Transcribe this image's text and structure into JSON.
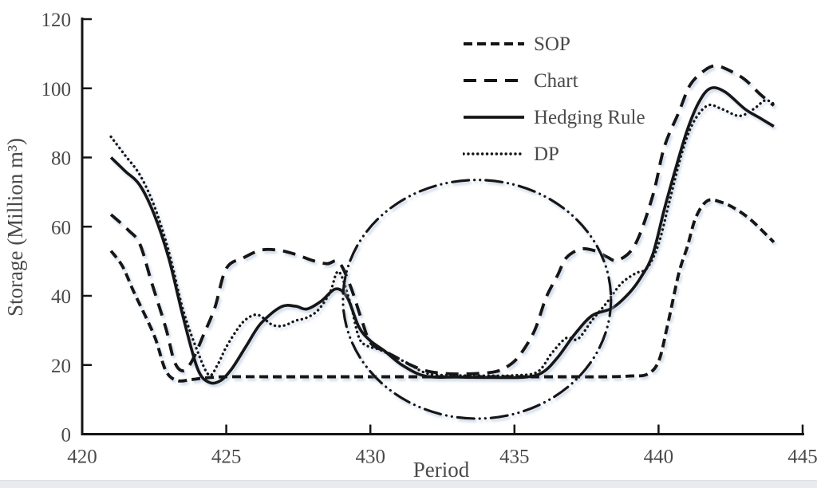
{
  "figure": {
    "background": "#ffffff",
    "text_color": "#4a4a4a",
    "line_color": "#141414",
    "shadow_color": "#a8bcd8",
    "bottom_strip_color": "#e9eaee"
  },
  "chart_data": {
    "type": "line",
    "title": "",
    "xlabel": "Period",
    "ylabel": "Storage (Million m³)",
    "xlim": [
      420,
      445
    ],
    "ylim": [
      0,
      120
    ],
    "x_ticks": [
      420,
      425,
      430,
      435,
      440,
      445
    ],
    "y_ticks": [
      0,
      20,
      40,
      60,
      80,
      100,
      120
    ],
    "grid": false,
    "legend_position": "top-center-inside",
    "series": [
      {
        "name": "SOP",
        "style": "dash-short",
        "points": [
          [
            421,
            53
          ],
          [
            421.4,
            48.5
          ],
          [
            421.8,
            41
          ],
          [
            422.5,
            28.5
          ],
          [
            422.9,
            18.4
          ],
          [
            423.3,
            15.5
          ],
          [
            423.8,
            15.8
          ],
          [
            424.3,
            16.3
          ],
          [
            425,
            16.6
          ],
          [
            426.5,
            16.6
          ],
          [
            428,
            16.6
          ],
          [
            429.5,
            16.6
          ],
          [
            431,
            16.6
          ],
          [
            432.5,
            16.6
          ],
          [
            434,
            16.6
          ],
          [
            435.5,
            16.6
          ],
          [
            437,
            16.6
          ],
          [
            438.2,
            16.6
          ],
          [
            439,
            16.8
          ],
          [
            439.6,
            17.3
          ],
          [
            440,
            21
          ],
          [
            440.3,
            31
          ],
          [
            440.7,
            46.4
          ],
          [
            441,
            54.2
          ],
          [
            441.3,
            62.8
          ],
          [
            441.7,
            67.5
          ],
          [
            442.2,
            67
          ],
          [
            442.7,
            65
          ],
          [
            443.2,
            62
          ],
          [
            443.7,
            58
          ],
          [
            444,
            55.5
          ]
        ]
      },
      {
        "name": "Chart",
        "style": "dash-long",
        "points": [
          [
            421,
            63.5
          ],
          [
            421.6,
            59
          ],
          [
            422,
            55
          ],
          [
            422.4,
            44.1
          ],
          [
            422.9,
            30.8
          ],
          [
            423.2,
            21
          ],
          [
            423.5,
            18.3
          ],
          [
            423.8,
            21
          ],
          [
            424.2,
            28.5
          ],
          [
            424.6,
            36.5
          ],
          [
            425,
            47.9
          ],
          [
            425.6,
            51
          ],
          [
            426.2,
            53.2
          ],
          [
            426.8,
            53.2
          ],
          [
            427.4,
            52
          ],
          [
            428,
            50.2
          ],
          [
            428.5,
            49.3
          ],
          [
            428.9,
            49.8
          ],
          [
            429.3,
            43
          ],
          [
            429.7,
            33
          ],
          [
            430,
            26.5
          ],
          [
            430.5,
            24
          ],
          [
            430.9,
            22.2
          ],
          [
            431.4,
            20
          ],
          [
            431.9,
            18.4
          ],
          [
            432.5,
            17.6
          ],
          [
            433.3,
            17.4
          ],
          [
            434.3,
            18
          ],
          [
            434.8,
            19.8
          ],
          [
            435.2,
            23
          ],
          [
            435.7,
            30
          ],
          [
            436.1,
            39.5
          ],
          [
            436.5,
            46
          ],
          [
            436.8,
            51
          ],
          [
            437.3,
            53.5
          ],
          [
            437.8,
            53
          ],
          [
            438.2,
            51.3
          ],
          [
            438.6,
            50.3
          ],
          [
            439.2,
            55
          ],
          [
            439.8,
            69
          ],
          [
            440.2,
            83
          ],
          [
            440.7,
            93
          ],
          [
            441.1,
            101
          ],
          [
            441.6,
            105.2
          ],
          [
            442,
            106.5
          ],
          [
            442.5,
            105
          ],
          [
            443,
            102.5
          ],
          [
            443.5,
            98.5
          ],
          [
            444,
            95
          ]
        ]
      },
      {
        "name": "Hedging Rule",
        "style": "solid",
        "points": [
          [
            421,
            80
          ],
          [
            421.5,
            76
          ],
          [
            422,
            72
          ],
          [
            422.5,
            63.5
          ],
          [
            423,
            51
          ],
          [
            423.5,
            34
          ],
          [
            424,
            19
          ],
          [
            424.4,
            15
          ],
          [
            424.8,
            15.5
          ],
          [
            425.2,
            19
          ],
          [
            425.7,
            25.6
          ],
          [
            426.2,
            32
          ],
          [
            426.9,
            36.8
          ],
          [
            427.4,
            37
          ],
          [
            427.8,
            36.2
          ],
          [
            428.3,
            38.5
          ],
          [
            428.8,
            42
          ],
          [
            429.2,
            39.5
          ],
          [
            429.6,
            31
          ],
          [
            430,
            27
          ],
          [
            430.5,
            24
          ],
          [
            431.1,
            20
          ],
          [
            431.9,
            16.8
          ],
          [
            433,
            16.5
          ],
          [
            434.2,
            16.4
          ],
          [
            435.4,
            16.5
          ],
          [
            436,
            18
          ],
          [
            436.5,
            22.2
          ],
          [
            437.1,
            29
          ],
          [
            437.7,
            34.3
          ],
          [
            438.4,
            36.5
          ],
          [
            439,
            41
          ],
          [
            439.4,
            45.5
          ],
          [
            439.8,
            52
          ],
          [
            440.2,
            65
          ],
          [
            440.6,
            77
          ],
          [
            441,
            88
          ],
          [
            441.4,
            96
          ],
          [
            441.8,
            100
          ],
          [
            442.3,
            99
          ],
          [
            443,
            94
          ],
          [
            443.5,
            91.5
          ],
          [
            444,
            89
          ]
        ]
      },
      {
        "name": "DP",
        "style": "dotted",
        "points": [
          [
            421,
            86
          ],
          [
            421.5,
            80.5
          ],
          [
            422,
            75
          ],
          [
            422.5,
            66
          ],
          [
            423,
            53
          ],
          [
            423.5,
            36
          ],
          [
            424,
            24
          ],
          [
            424.4,
            17.1
          ],
          [
            424.7,
            20.1
          ],
          [
            425,
            25.2
          ],
          [
            425.4,
            30.5
          ],
          [
            425.7,
            33.3
          ],
          [
            426.1,
            34.5
          ],
          [
            426.6,
            31.6
          ],
          [
            427,
            31.4
          ],
          [
            427.4,
            32.8
          ],
          [
            427.8,
            33.7
          ],
          [
            428.2,
            36
          ],
          [
            428.6,
            41
          ],
          [
            428.9,
            47
          ],
          [
            429.3,
            38
          ],
          [
            429.6,
            28
          ],
          [
            429.9,
            25.5
          ],
          [
            430.3,
            24.5
          ],
          [
            430.8,
            22.5
          ],
          [
            431.3,
            20.5
          ],
          [
            432,
            17.5
          ],
          [
            433,
            17
          ],
          [
            434,
            16.9
          ],
          [
            435,
            17
          ],
          [
            435.8,
            18
          ],
          [
            436.3,
            23.5
          ],
          [
            436.8,
            27.8
          ],
          [
            437.2,
            27.5
          ],
          [
            437.7,
            33
          ],
          [
            438.2,
            38
          ],
          [
            438.7,
            43.5
          ],
          [
            439.2,
            46.5
          ],
          [
            439.6,
            48
          ],
          [
            440,
            55
          ],
          [
            440.4,
            68
          ],
          [
            440.8,
            81
          ],
          [
            441.2,
            90
          ],
          [
            441.7,
            95
          ],
          [
            442.2,
            94
          ],
          [
            442.8,
            92
          ],
          [
            443.3,
            94
          ],
          [
            443.7,
            96.5
          ],
          [
            444,
            95.5
          ]
        ]
      }
    ],
    "annotation_ellipse": {
      "style": "dash-dot-dot",
      "cx": 433.7,
      "cy": 39,
      "rx": 4.65,
      "ry": 34.5
    }
  }
}
